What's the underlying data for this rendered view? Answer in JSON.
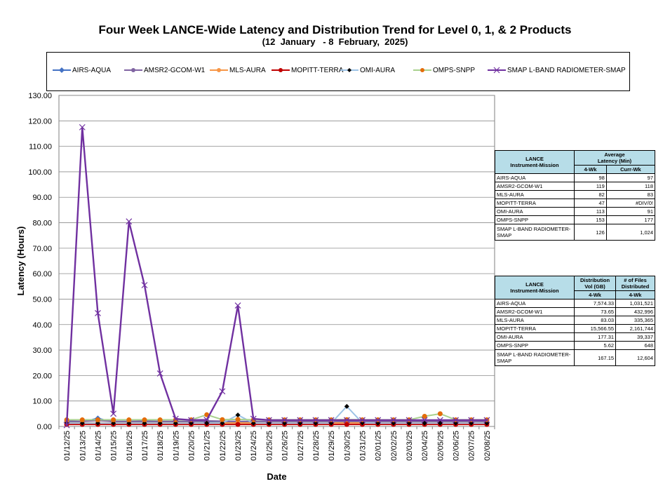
{
  "chart_data": {
    "type": "line",
    "title": "Four Week LANCE-Wide Latency and Distribution Trend for Level 0, 1, & 2 Products",
    "subtitle": "(12  January   - 8  February,  2025)",
    "xlabel": "Date",
    "ylabel": "Latency (Hours)",
    "ylim": [
      0,
      130
    ],
    "yticks": [
      "0.00",
      "10.00",
      "20.00",
      "30.00",
      "40.00",
      "50.00",
      "60.00",
      "70.00",
      "80.00",
      "90.00",
      "100.00",
      "110.00",
      "120.00",
      "130.00"
    ],
    "grid": "horizontal",
    "legend": "top",
    "categories": [
      "01/12/25",
      "01/13/25",
      "01/14/25",
      "01/15/25",
      "01/16/25",
      "01/17/25",
      "01/18/25",
      "01/19/25",
      "01/20/25",
      "01/21/25",
      "01/22/25",
      "01/23/25",
      "01/24/25",
      "01/25/25",
      "01/26/25",
      "01/27/25",
      "01/28/25",
      "01/29/25",
      "01/30/25",
      "01/31/25",
      "02/01/25",
      "02/02/25",
      "02/03/25",
      "02/04/25",
      "02/05/25",
      "02/06/25",
      "02/07/25",
      "02/08/25"
    ],
    "series": [
      {
        "name": "AIRS-AQUA",
        "color": "#4472c4",
        "marker": "diamond",
        "values": [
          1.8,
          1.8,
          3.2,
          1.7,
          1.6,
          1.7,
          1.6,
          1.7,
          1.6,
          1.7,
          1.6,
          1.7,
          1.7,
          1.6,
          1.6,
          1.7,
          1.6,
          1.6,
          1.6,
          1.6,
          1.6,
          1.6,
          1.6,
          1.7,
          1.6,
          1.6,
          1.6,
          1.6
        ]
      },
      {
        "name": "AMSR2-GCOM-W1",
        "color": "#8064a2",
        "marker": "circle",
        "values": [
          2.1,
          2.0,
          2.3,
          2.0,
          2.0,
          2.1,
          2.0,
          2.0,
          2.0,
          2.2,
          2.1,
          2.0,
          2.0,
          2.0,
          2.0,
          2.0,
          2.0,
          2.0,
          2.0,
          2.0,
          2.0,
          2.0,
          2.0,
          2.0,
          2.0,
          2.0,
          2.0,
          2.0
        ]
      },
      {
        "name": "MLS-AURA",
        "color": "#f79646",
        "marker": "circle",
        "values": [
          1.4,
          1.4,
          1.4,
          1.4,
          1.4,
          1.4,
          1.4,
          1.4,
          1.4,
          1.4,
          1.4,
          1.4,
          1.4,
          1.4,
          1.4,
          1.4,
          1.4,
          1.4,
          1.4,
          1.4,
          1.4,
          1.4,
          1.4,
          1.4,
          1.4,
          1.4,
          1.4,
          1.4
        ]
      },
      {
        "name": "MOPITT-TERRA",
        "color": "#c00000",
        "marker": "circle",
        "values": [
          0.8,
          0.8,
          0.8,
          0.8,
          0.8,
          0.8,
          0.8,
          0.8,
          0.8,
          0.8,
          0.8,
          0.8,
          0.8,
          0.8,
          0.8,
          0.8,
          0.8,
          0.8,
          0.8,
          0.8,
          0.8,
          0.8,
          0.8,
          0.8,
          0.8,
          0.8,
          0.8,
          0.8
        ]
      },
      {
        "name": "OMI-AURA",
        "color": "#9dc3e6",
        "marker": "diamond-dark",
        "values": [
          1.3,
          1.3,
          1.3,
          1.3,
          1.3,
          1.3,
          1.3,
          1.3,
          1.3,
          1.3,
          1.3,
          4.5,
          1.3,
          1.3,
          1.3,
          1.3,
          1.3,
          1.3,
          7.9,
          1.4,
          1.3,
          1.3,
          1.3,
          1.3,
          1.3,
          1.3,
          1.3,
          1.3
        ]
      },
      {
        "name": "OMPS-SNPP",
        "color": "#a9d18e",
        "marker": "circle-orange",
        "values": [
          2.6,
          2.6,
          2.6,
          2.6,
          2.6,
          2.6,
          2.6,
          2.6,
          2.6,
          4.6,
          2.7,
          2.8,
          2.6,
          2.6,
          2.6,
          2.6,
          2.6,
          2.6,
          2.7,
          2.6,
          2.6,
          2.6,
          2.6,
          4.0,
          5.0,
          2.6,
          2.6,
          2.6
        ]
      },
      {
        "name": "SMAP L-BAND RADIOMETER-SMAP",
        "color": "#7030a0",
        "marker": "x",
        "values": [
          0.5,
          117.5,
          44.5,
          5.0,
          80.5,
          55.5,
          20.8,
          3.0,
          2.5,
          2.6,
          13.8,
          47.5,
          3.0,
          2.5,
          2.5,
          2.5,
          2.5,
          2.5,
          2.5,
          2.5,
          2.5,
          2.5,
          2.5,
          2.5,
          2.5,
          2.5,
          2.5,
          2.5
        ]
      }
    ]
  },
  "latency_table": {
    "col1_header": "LANCE\nInstrument-Mission",
    "group_header": "Average\nLatency (Min)",
    "sub_headers": [
      "4-Wk",
      "Curr-Wk"
    ],
    "rows": [
      [
        "AIRS-AQUA",
        "98",
        "97"
      ],
      [
        "AMSR2-GCOM-W1",
        "119",
        "118"
      ],
      [
        "MLS-AURA",
        "82",
        "83"
      ],
      [
        "MOPITT-TERRA",
        "47",
        "#DIV/0!"
      ],
      [
        "OMI-AURA",
        "113",
        "91"
      ],
      [
        "OMPS-SNPP",
        "153",
        "177"
      ],
      [
        "SMAP L-BAND RADIOMETER-SMAP",
        "126",
        "1,024"
      ]
    ]
  },
  "distribution_table": {
    "col1_header": "LANCE\nInstrument-Mission",
    "col2_header": "Distribution\nVol (GB)",
    "col3_header": "# of Files\nDistributed",
    "sub_headers": [
      "4-Wk",
      "4-Wk"
    ],
    "rows": [
      [
        "AIRS-AQUA",
        "7,574.33",
        "1,031,521"
      ],
      [
        "AMSR2-GCOM-W1",
        "73.65",
        "432,996"
      ],
      [
        "MLS-AURA",
        "83.03",
        "335,365"
      ],
      [
        "MOPITT-TERRA",
        "15,566.55",
        "2,161,744"
      ],
      [
        "OMI-AURA",
        "177.31",
        "39,337"
      ],
      [
        "OMPS-SNPP",
        "5.62",
        "648"
      ],
      [
        "SMAP L-BAND RADIOMETER-SMAP",
        "167.15",
        "12,604"
      ]
    ]
  }
}
